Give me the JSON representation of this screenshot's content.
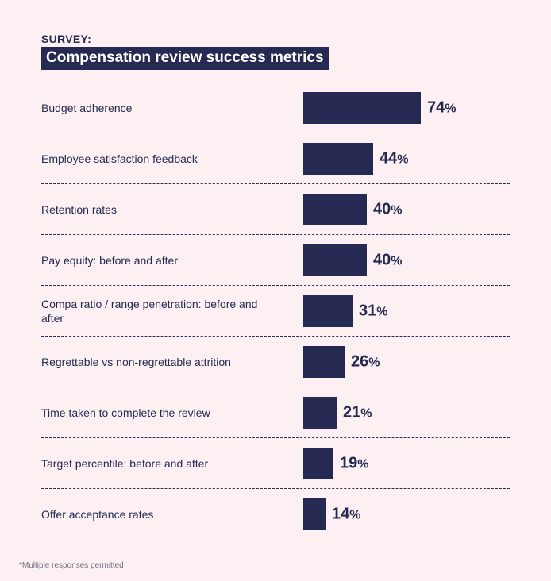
{
  "kicker": "SURVEY:",
  "title": "Compensation review success metrics",
  "footnote": "*Multiple responses permitted",
  "colors": {
    "background": "#fdf0f2",
    "bar": "#262a52",
    "text": "#262a52"
  },
  "chart_data": {
    "type": "bar",
    "orientation": "horizontal",
    "title": "Compensation review success metrics",
    "unit": "%",
    "xlim": [
      0,
      100
    ],
    "grid": false,
    "categories": [
      "Budget adherence",
      "Employee satisfaction feedback",
      "Retention rates",
      "Pay equity: before and after",
      "Compa ratio / range penetration: before and after",
      "Regrettable vs non-regrettable attrition",
      "Time taken to complete the review",
      "Target percentile: before and after",
      "Offer acceptance rates"
    ],
    "values": [
      74,
      44,
      40,
      40,
      31,
      26,
      21,
      19,
      14
    ]
  }
}
